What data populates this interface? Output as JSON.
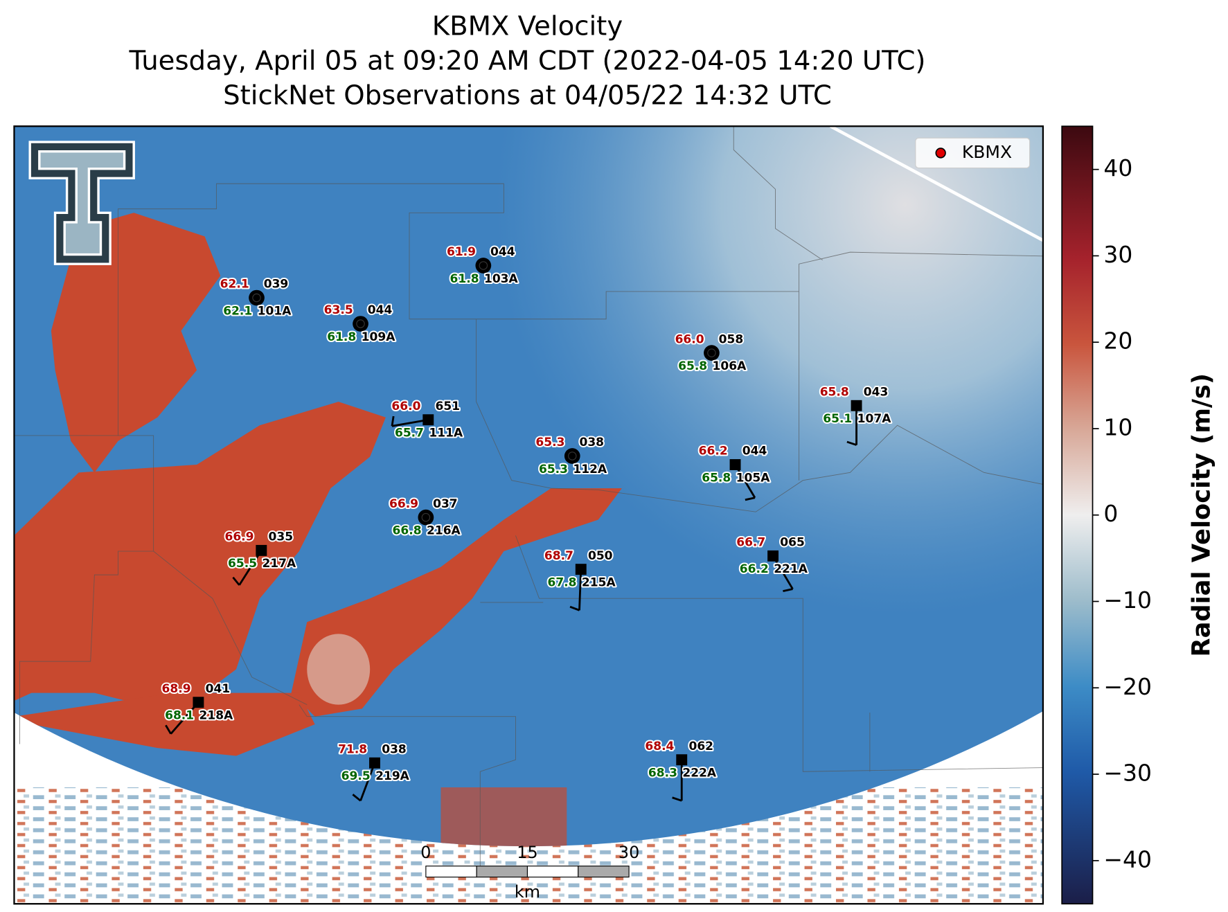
{
  "header": {
    "title": [
      "KBMX Velocity",
      "Tuesday, April 05 at 09:20 AM CDT (2022-04-05 14:20 UTC)",
      "StickNet Observations at 04/05/22 14:32 UTC"
    ]
  },
  "legend": {
    "label": "KBMX",
    "color": "#e00000"
  },
  "colorbar": {
    "label": "Radial Velocity (m/s)",
    "lim": [
      -45,
      45
    ],
    "ticks": [
      {
        "value": -40,
        "label": "−40"
      },
      {
        "value": -30,
        "label": "−30"
      },
      {
        "value": -20,
        "label": "−20"
      },
      {
        "value": -10,
        "label": "−10"
      },
      0,
      10,
      20,
      30,
      40
    ]
  },
  "scale_bar": {
    "ticks": [
      "0",
      "15",
      "30"
    ],
    "unit": "km"
  },
  "stations": [
    {
      "id": "101A",
      "temperature": "62.1",
      "pressure": "039",
      "dewpoint": "62.1"
    },
    {
      "id": "109A",
      "temperature": "63.5",
      "pressure": "044",
      "dewpoint": "61.8"
    },
    {
      "id": "103A",
      "temperature": "61.9",
      "pressure": "044",
      "dewpoint": "61.8"
    },
    {
      "id": "106A",
      "temperature": "66.0",
      "pressure": "058",
      "dewpoint": "65.8"
    },
    {
      "id": "111A",
      "temperature": "66.0",
      "pressure": "651",
      "dewpoint": "65.7"
    },
    {
      "id": "112A",
      "temperature": "65.3",
      "pressure": "038",
      "dewpoint": "65.3"
    },
    {
      "id": "107A",
      "temperature": "65.8",
      "pressure": "043",
      "dewpoint": "65.1"
    },
    {
      "id": "105A",
      "temperature": "66.2",
      "pressure": "044",
      "dewpoint": "65.8"
    },
    {
      "id": "216A",
      "temperature": "66.9",
      "pressure": "037",
      "dewpoint": "66.8"
    },
    {
      "id": "217A",
      "temperature": "66.9",
      "pressure": "035",
      "dewpoint": "65.5"
    },
    {
      "id": "215A",
      "temperature": "68.7",
      "pressure": "050",
      "dewpoint": "67.8"
    },
    {
      "id": "221A",
      "temperature": "66.7",
      "pressure": "065",
      "dewpoint": "66.2"
    },
    {
      "id": "218A",
      "temperature": "68.9",
      "pressure": "041",
      "dewpoint": "68.1"
    },
    {
      "id": "219A",
      "temperature": "71.8",
      "pressure": "038",
      "dewpoint": "69.5"
    },
    {
      "id": "222A",
      "temperature": "68.4",
      "pressure": "062",
      "dewpoint": "68.3"
    }
  ]
}
